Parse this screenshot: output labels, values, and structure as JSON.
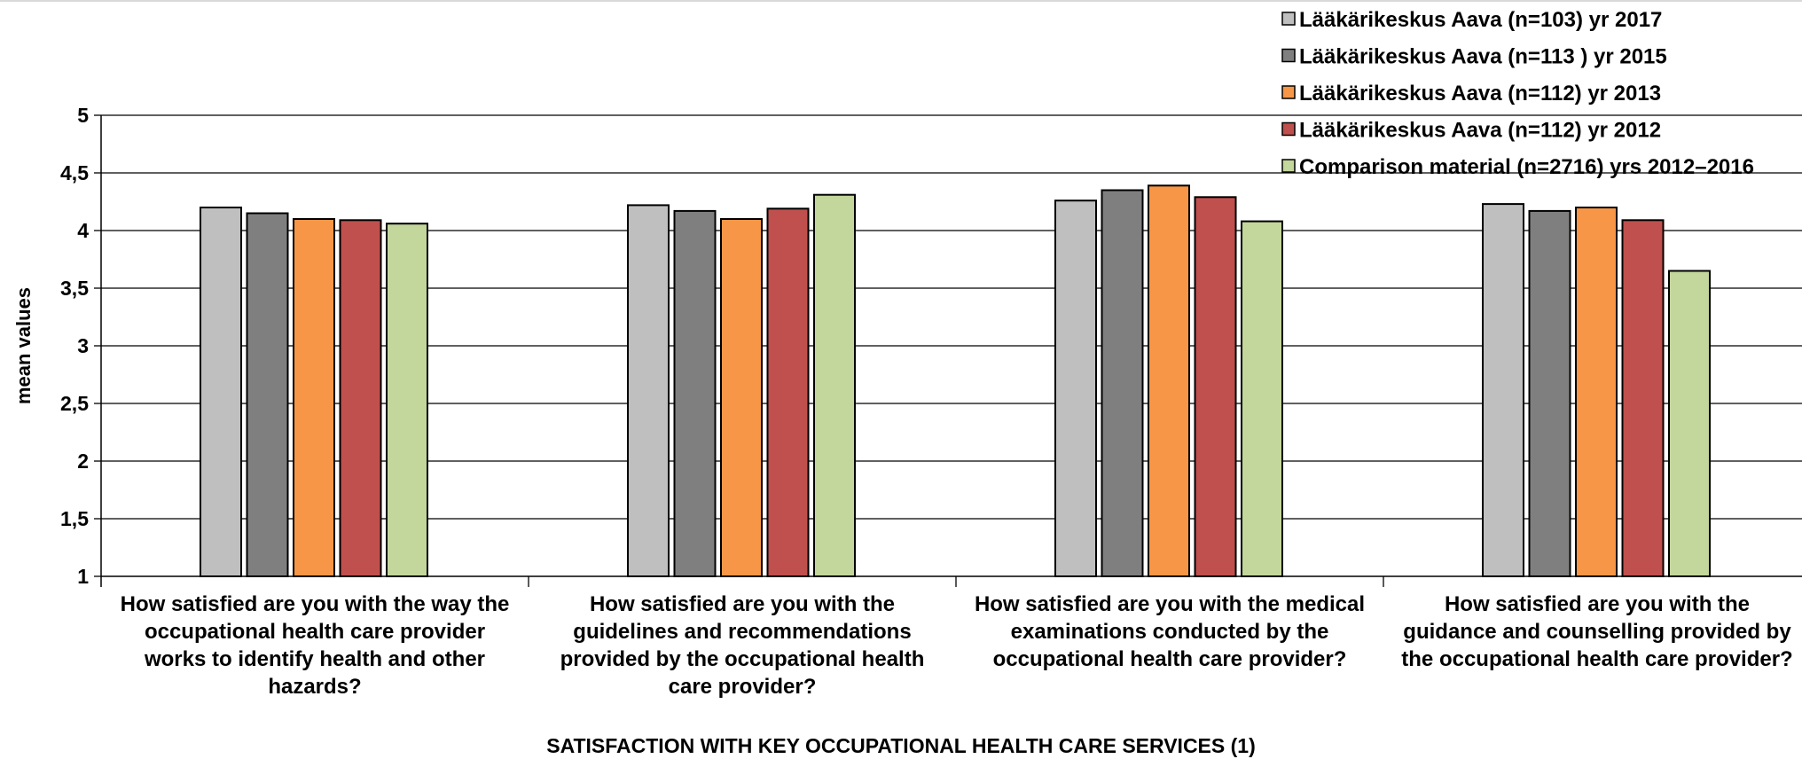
{
  "chart_data": {
    "type": "bar",
    "ylabel": "mean values",
    "xlabel": "SATISFACTION WITH KEY OCCUPATIONAL HEALTH CARE SERVICES (1)",
    "ylim": [
      1,
      5
    ],
    "yticks": [
      "1",
      "1,5",
      "2",
      "2,5",
      "3",
      "3,5",
      "4",
      "4,5",
      "5"
    ],
    "grid": true,
    "legend_position": "top-right",
    "categories": [
      [
        "How satisfied are you with the way the",
        "occupational health care provider",
        "works to identify health and other",
        "hazards?"
      ],
      [
        "How satisfied are you with the",
        "guidelines and recommendations",
        "provided by the occupational health",
        "care provider?"
      ],
      [
        "How satisfied are you with the medical",
        "examinations conducted by the",
        "occupational health care provider?"
      ],
      [
        "How satisfied are you with the",
        "guidance and counselling provided by",
        "the occupational health care provider?"
      ]
    ],
    "series": [
      {
        "name": "Lääkärikeskus Aava (n=103)  yr 2017",
        "color": "#bfbfbf",
        "values": [
          4.2,
          4.22,
          4.26,
          4.23
        ]
      },
      {
        "name": "Lääkärikeskus Aava (n=113 ) yr 2015",
        "color": "#7f7f7f",
        "values": [
          4.15,
          4.17,
          4.35,
          4.17
        ]
      },
      {
        "name": "Lääkärikeskus Aava (n=112)  yr 2013",
        "color": "#f79646",
        "values": [
          4.1,
          4.1,
          4.39,
          4.2
        ]
      },
      {
        "name": "Lääkärikeskus Aava (n=112)  yr 2012",
        "color": "#c0504d",
        "values": [
          4.09,
          4.19,
          4.29,
          4.09
        ]
      },
      {
        "name": "Comparison material (n=2716)  yrs 2012–2016",
        "color": "#c3d69b",
        "values": [
          4.06,
          4.31,
          4.08,
          3.65
        ]
      }
    ]
  }
}
